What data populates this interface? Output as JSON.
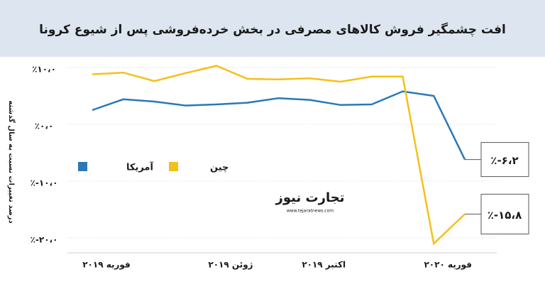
{
  "chart_data": {
    "type": "line",
    "title": "افت چشمگیر فروش کالاهای مصرفی در بخش خرده‌فروشی پس از شیوع کرونا",
    "y_label": "درصد تغییرات نسبت به سال گذشته",
    "watermark": "تجارت نیوز",
    "watermark_url": "www.tejaratnews.com",
    "categories": [
      "فوریه ۲۰۱۹",
      null,
      null,
      null,
      "ژوئن ۲۰۱۹",
      null,
      null,
      "اکتبر ۲۰۱۹",
      null,
      null,
      null,
      "فوریه ۲۰۲۰",
      null
    ],
    "series": [
      {
        "name": "آمریکا",
        "color": "#2a78b8",
        "values": [
          2.5,
          4.4,
          4.0,
          3.3,
          3.5,
          3.8,
          4.6,
          4.3,
          3.4,
          3.5,
          5.8,
          5.0,
          -6.2
        ],
        "value_labels": [
          null,
          null,
          null,
          null,
          null,
          null,
          null,
          null,
          null,
          null,
          null,
          null,
          "٪-۶،۲"
        ]
      },
      {
        "name": "چین",
        "color": "#f5c01a",
        "values": [
          8.8,
          9.1,
          7.6,
          9.0,
          10.3,
          8.0,
          7.9,
          8.1,
          7.5,
          8.4,
          8.4,
          -21.0,
          -15.8
        ],
        "value_labels": [
          null,
          null,
          null,
          null,
          null,
          null,
          null,
          null,
          null,
          null,
          null,
          null,
          "٪-۱۵،۸"
        ]
      }
    ],
    "ylim": [
      -22,
      11.5
    ],
    "yticks": [
      {
        "value": 10,
        "label": "٪۱۰،۰"
      },
      {
        "value": 0,
        "label": "٪۰،۰"
      },
      {
        "value": -10,
        "label": "٪-۱۰،۰"
      },
      {
        "value": -20,
        "label": "٪-۲۰،۰"
      }
    ],
    "grid": true
  }
}
